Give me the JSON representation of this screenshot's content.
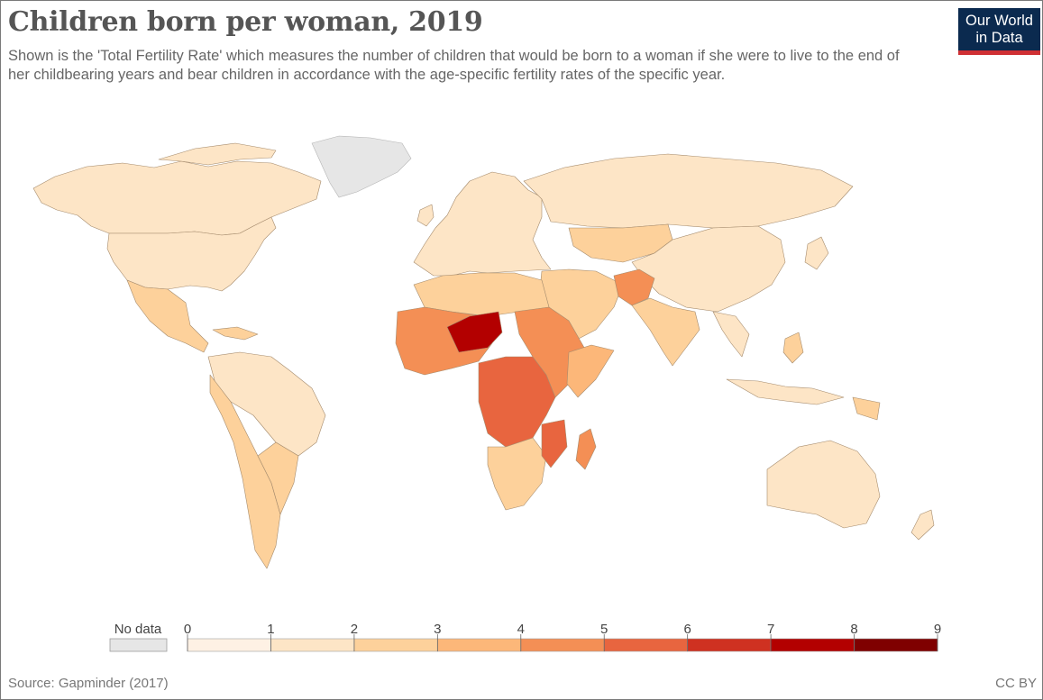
{
  "header": {
    "title": "Children born per woman, 2019",
    "subtitle": "Shown is the 'Total Fertility Rate' which measures the number of children that would be born to a woman if she were to live to the end of her childbearing years and bear children in accordance with the age-specific fertility rates of the specific year."
  },
  "logo": {
    "line1": "Our World",
    "line2": "in Data"
  },
  "chart_data": {
    "type": "choropleth",
    "title": "Children born per woman, 2019",
    "indicator": "Total Fertility Rate",
    "year": 2019,
    "legend": {
      "no_data_label": "No data",
      "no_data_color": "#e6e6e6",
      "ticks": [
        "0",
        "1",
        "2",
        "3",
        "4",
        "5",
        "6",
        "7",
        "8",
        "9"
      ],
      "bins": [
        {
          "from": 0,
          "to": 1,
          "color": "#fef1e4"
        },
        {
          "from": 1,
          "to": 2,
          "color": "#fde5c6"
        },
        {
          "from": 2,
          "to": 3,
          "color": "#fdd19b"
        },
        {
          "from": 3,
          "to": 4,
          "color": "#fcb779"
        },
        {
          "from": 4,
          "to": 5,
          "color": "#f48f55"
        },
        {
          "from": 5,
          "to": 6,
          "color": "#e8653f"
        },
        {
          "from": 6,
          "to": 7,
          "color": "#cf3121"
        },
        {
          "from": 7,
          "to": 8,
          "color": "#b30000"
        },
        {
          "from": 8,
          "to": 9,
          "color": "#7f0000"
        }
      ]
    }
  },
  "footer": {
    "source": "Source: Gapminder (2017)",
    "license": "CC BY"
  }
}
